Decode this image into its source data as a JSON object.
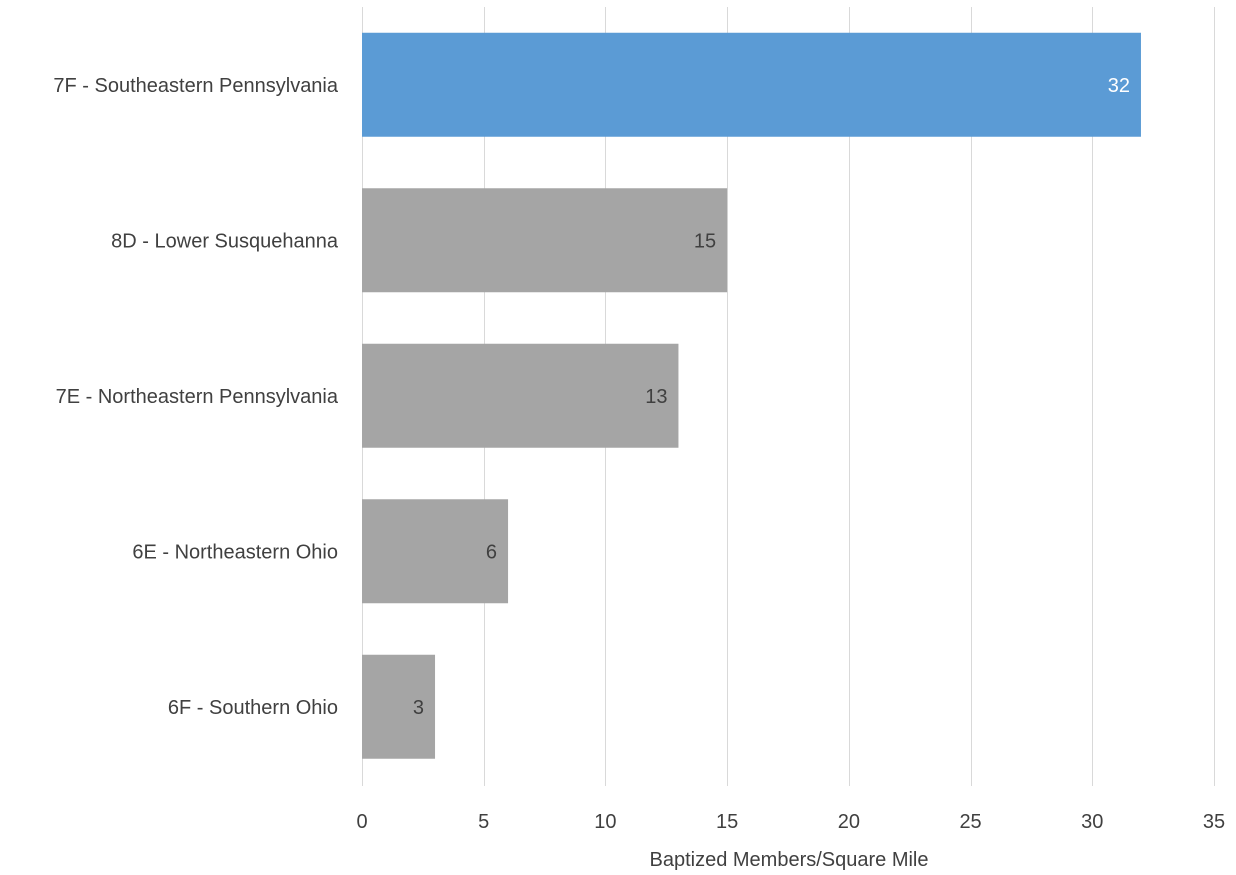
{
  "chart_data": {
    "type": "bar",
    "orientation": "horizontal",
    "title": "",
    "xlabel": "Baptized Members/Square Mile",
    "ylabel": "",
    "categories": [
      "7F - Southeastern Pennsylvania",
      "8D - Lower Susquehanna",
      "7E - Northeastern Pennsylvania",
      "6E - Northeastern Ohio",
      "6F - Southern Ohio"
    ],
    "values": [
      32,
      15,
      13,
      6,
      3
    ],
    "data_labels": [
      "32",
      "15",
      "13",
      "6",
      "3"
    ],
    "bar_colors": [
      "#5b9bd5",
      "#a5a5a5",
      "#a5a5a5",
      "#a5a5a5",
      "#a5a5a5"
    ],
    "data_label_colors": [
      "#ffffff",
      "#404040",
      "#404040",
      "#404040",
      "#404040"
    ],
    "xlim": [
      0,
      35
    ],
    "x_ticks": [
      0,
      5,
      10,
      15,
      20,
      25,
      30,
      35
    ],
    "x_tick_labels": [
      "0",
      "5",
      "10",
      "15",
      "20",
      "25",
      "30",
      "35"
    ],
    "grid": true,
    "legend": "none"
  }
}
